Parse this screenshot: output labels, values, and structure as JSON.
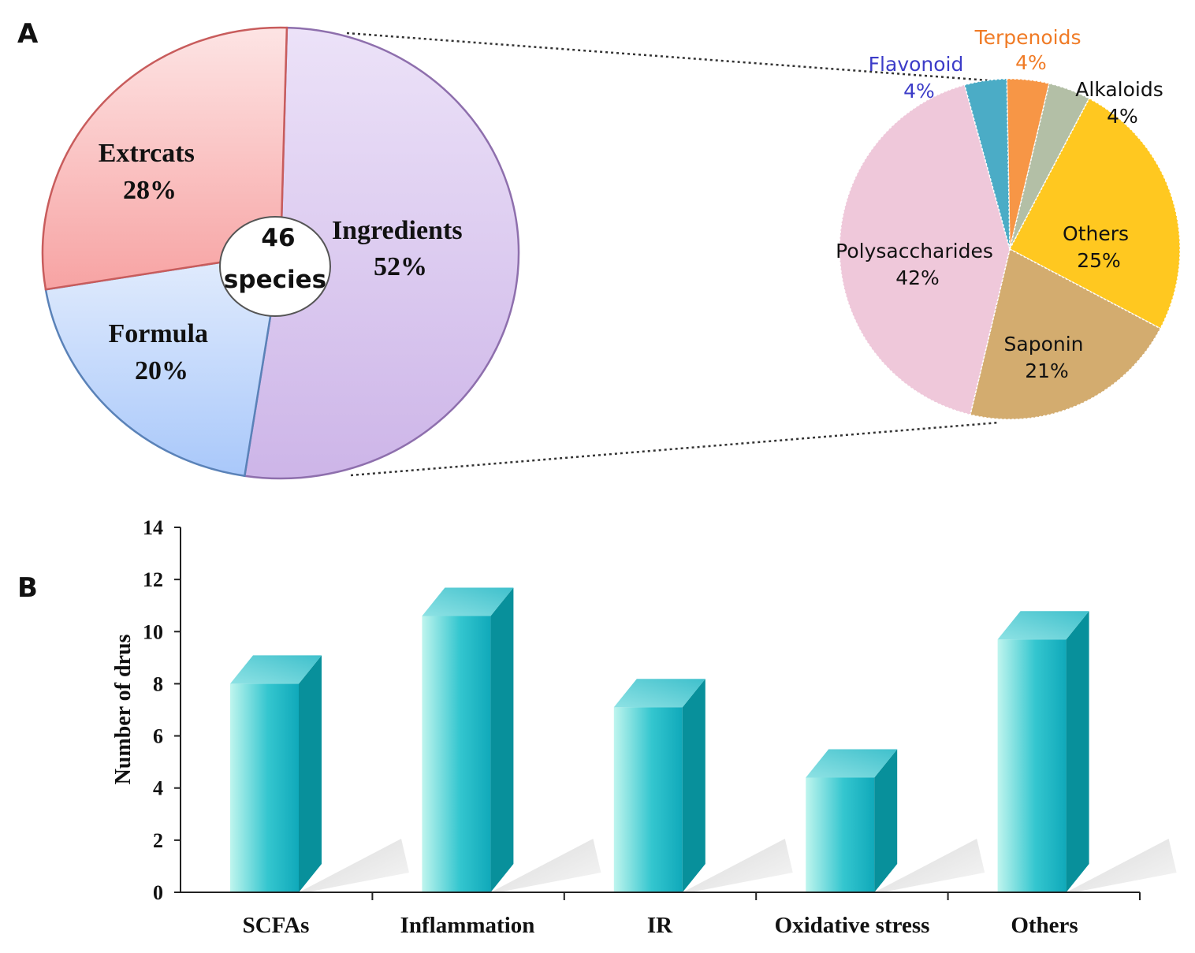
{
  "panel_labels": {
    "a": "A",
    "b": "B"
  },
  "chart_data": [
    {
      "type": "pie",
      "id": "main-pie",
      "center_label": [
        "46",
        "species"
      ],
      "slices": [
        {
          "name": "Ingredients",
          "value": 52,
          "pct": "52%",
          "color": "#dccbf0"
        },
        {
          "name": "Formula",
          "value": 20,
          "pct": "20%",
          "color": "#c7dcfb"
        },
        {
          "name": "Extrcats",
          "value": 28,
          "pct": "28%",
          "color": "#fbc3c3"
        }
      ]
    },
    {
      "type": "pie",
      "id": "ingredients-pie",
      "slices": [
        {
          "name": "Terpenoids",
          "value": 4,
          "pct": "4%",
          "color": "#f79646"
        },
        {
          "name": "Alkaloids",
          "value": 4,
          "pct": "4%",
          "color": "#b3bfa6"
        },
        {
          "name": "Others",
          "value": 25,
          "pct": "25%",
          "color": "#ffc820"
        },
        {
          "name": "Saponin",
          "value": 21,
          "pct": "21%",
          "color": "#d3ac6f"
        },
        {
          "name": "Polysaccharides",
          "value": 42,
          "pct": "42%",
          "color": "#efc8da"
        },
        {
          "name": "Flavonoid",
          "value": 4,
          "pct": "4%",
          "color": "#4bacc6"
        }
      ]
    },
    {
      "type": "bar",
      "id": "bar-chart",
      "categories": [
        "SCFAs",
        "Inflammation",
        "IR",
        "Oxidative stress",
        "Others"
      ],
      "values": [
        8,
        10.6,
        7.1,
        4.4,
        9.7
      ],
      "ylabel": "Number of drus",
      "xlabel": "",
      "ylim": [
        0,
        14
      ],
      "yticks": [
        0,
        2,
        4,
        6,
        8,
        10,
        12,
        14
      ],
      "color": "#1fb8c8"
    }
  ]
}
